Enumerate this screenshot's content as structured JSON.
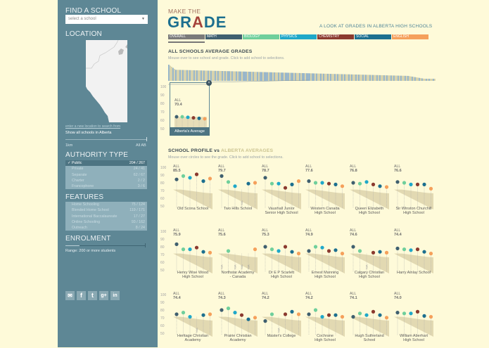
{
  "sidebar": {
    "find_heading": "FIND A SCHOOL",
    "select_placeholder": "select a school",
    "location_heading": "LOCATION",
    "location_link": "enter a new location to search from",
    "show_all": "Show all schools in Alberta",
    "distance_min": "1km",
    "distance_max": "All AB",
    "authority_heading": "AUTHORITY TYPE",
    "authority_items": [
      {
        "label": "Public",
        "count": "204 / 267",
        "selected": true,
        "check": "✓"
      },
      {
        "label": "Private",
        "count": "24 / 41",
        "selected": false
      },
      {
        "label": "Separate",
        "count": "62 / 67",
        "selected": false
      },
      {
        "label": "Charter",
        "count": "2 / 2",
        "selected": false
      },
      {
        "label": "Francophone",
        "count": "3 / 6",
        "selected": false
      }
    ],
    "features_heading": "FEATURES",
    "features_items": [
      {
        "label": "Home Schooling",
        "count": "75 / 124"
      },
      {
        "label": "Blended Home School",
        "count": "119 / 171"
      },
      {
        "label": "International Baccalaureate",
        "count": "17 / 27"
      },
      {
        "label": "Online Schooling",
        "count": "93 / 162"
      },
      {
        "label": "Outreach",
        "count": "8 / 24"
      }
    ],
    "enrolment_heading": "ENROLMENT",
    "enrolment_range": "Range: 200 or more students",
    "social_icons": [
      "email-icon",
      "facebook-icon",
      "twitter-icon",
      "google-plus-icon",
      "linkedin-icon"
    ],
    "social_glyphs": [
      "✉",
      "f",
      "t",
      "g+",
      "in"
    ]
  },
  "header": {
    "make_the": "MAKE THE",
    "grade_pre": "GR",
    "grade_a": "A",
    "grade_post": "DE",
    "tagline": "A LOOK AT GRADES IN ALBERTA HIGH SCHOOLS"
  },
  "tabs": [
    {
      "label": "OVERALL",
      "color": "#7a7a7a",
      "active": true
    },
    {
      "label": "MATH",
      "color": "#3f5f6f"
    },
    {
      "label": "BIOLOGY",
      "color": "#6fcf9b"
    },
    {
      "label": "PHYSICS",
      "color": "#1fa8c9"
    },
    {
      "label": "CHEMISTRY",
      "color": "#8b3a2f"
    },
    {
      "label": "SOCIAL",
      "color": "#1c6f8f"
    },
    {
      "label": "ENGLISH",
      "color": "#f5a05b"
    }
  ],
  "all_schools": {
    "title": "ALL SCHOOLS AVERAGE GRADES",
    "subtitle": "Mouse over to see school and grade. Click to add school to selections.",
    "close_icon": "×",
    "average_label": "Alberta's Average",
    "average_all": "ALL",
    "average_value": "70.4"
  },
  "profile": {
    "title_pre": "SCHOOL PROFILE vs ",
    "title_alb": "ALBERTA AVERAGES",
    "subtitle": "Mouse over circles to see the grade. Click to add school to selections.",
    "all_label": "ALL",
    "na_label": "N/A"
  },
  "chart_data": {
    "type": "scatter",
    "title": "School Profile vs Alberta Averages",
    "ylim": [
      50,
      100
    ],
    "yticks": [
      50,
      60,
      70,
      80,
      90,
      100
    ],
    "subjects": [
      "Math",
      "Biology",
      "Physics",
      "Chemistry",
      "Social",
      "English"
    ],
    "subject_colors": [
      "#3f5f6f",
      "#6fcf9b",
      "#1fa8c9",
      "#8b3a2f",
      "#1c6f8f",
      "#f5a05b"
    ],
    "alberta_average": {
      "all": 70.4,
      "values": [
        72,
        72,
        71,
        70,
        69,
        68
      ]
    },
    "schools": [
      {
        "name": "Old Scona School",
        "all": 85.5,
        "values": [
          84,
          88,
          86,
          90,
          82,
          85
        ]
      },
      {
        "name": "Two Hills School",
        "all": 79.7,
        "values": [
          88,
          81,
          76,
          null,
          79,
          80
        ]
      },
      {
        "name": "Vauxhall Junior Senior High School",
        "all": 78.7,
        "values": [
          86,
          79,
          79,
          74,
          78,
          82
        ]
      },
      {
        "name": "Western Canada High School",
        "all": 77.6,
        "values": [
          82,
          80,
          80,
          79,
          78,
          76
        ]
      },
      {
        "name": "Queen Elizabeth High School",
        "all": 76.8,
        "values": [
          80,
          79,
          81,
          78,
          76,
          75
        ]
      },
      {
        "name": "Sir Winston Churchill High School",
        "all": 76.6,
        "values": [
          81,
          80,
          78,
          78,
          78,
          73
        ]
      },
      {
        "name": "Henry Wise Wood High School",
        "all": 75.9,
        "values": [
          83,
          77,
          77,
          79,
          74,
          73
        ]
      },
      {
        "name": "Northstar Academy - Canada",
        "all": 75.6,
        "values": [
          null,
          75,
          null,
          null,
          null,
          77
        ]
      },
      {
        "name": "Dr E P Scarlett High School",
        "all": 75.3,
        "values": [
          80,
          77,
          75,
          80,
          74,
          72
        ]
      },
      {
        "name": "Ernest Manning High School",
        "all": 74.9,
        "values": [
          75,
          80,
          79,
          75,
          76,
          72
        ]
      },
      {
        "name": "Calgary Christian High School",
        "all": 74.6,
        "values": [
          80,
          75,
          null,
          73,
          74,
          73
        ]
      },
      {
        "name": "Harry Ainlay School",
        "all": 74.4,
        "values": [
          78,
          77,
          76,
          77,
          74,
          72
        ]
      },
      {
        "name": "Heritage Christian Academy",
        "all": 74.4,
        "values": [
          75,
          77,
          72,
          null,
          74,
          75
        ]
      },
      {
        "name": "Prairie Christian Academy",
        "all": 74.3,
        "values": [
          80,
          82,
          77,
          74,
          69,
          71
        ]
      },
      {
        "name": "Master's College",
        "all": 74.2,
        "values": [
          67,
          75,
          null,
          75,
          78,
          75
        ]
      },
      {
        "name": "Cochrane High School",
        "all": 74.2,
        "values": [
          75,
          80,
          72,
          74,
          74,
          72
        ]
      },
      {
        "name": "Hugh Sutherland School",
        "all": 74.1,
        "values": [
          72,
          76,
          74,
          78,
          74,
          71
        ]
      },
      {
        "name": "William Aberhart High School",
        "all": 74.0,
        "values": [
          77,
          76,
          76,
          78,
          73,
          72
        ]
      }
    ]
  },
  "schools_display": [
    {
      "l1": "Old Scona School",
      "l2": "",
      "all": "85.5"
    },
    {
      "l1": "Two Hills School",
      "l2": "",
      "all": "79.7"
    },
    {
      "l1": "Vauxhall Junior",
      "l2": "Senior High School",
      "all": "78.7"
    },
    {
      "l1": "Western Canada",
      "l2": "High School",
      "all": "77.6"
    },
    {
      "l1": "Queen Elizabeth",
      "l2": "High School",
      "all": "76.8"
    },
    {
      "l1": "Sir Winston Churchill",
      "l2": "High School",
      "all": "76.6"
    },
    {
      "l1": "Henry Wise Wood",
      "l2": "High School",
      "all": "75.9"
    },
    {
      "l1": "Northstar Academy",
      "l2": "- Canada",
      "all": "75.6"
    },
    {
      "l1": "Dr E P Scarlett",
      "l2": "High School",
      "all": "75.3"
    },
    {
      "l1": "Ernest Manning",
      "l2": "High School",
      "all": "74.9"
    },
    {
      "l1": "Calgary Christian",
      "l2": "High School",
      "all": "74.6"
    },
    {
      "l1": "Harry Ainlay School",
      "l2": "",
      "all": "74.4"
    },
    {
      "l1": "Heritage Christian",
      "l2": "Academy",
      "all": "74.4"
    },
    {
      "l1": "Prairie Christian",
      "l2": "Academy",
      "all": "74.3"
    },
    {
      "l1": "Master's College",
      "l2": "",
      "all": "74.2"
    },
    {
      "l1": "Cochrane",
      "l2": "High School",
      "all": "74.2"
    },
    {
      "l1": "Hugh Sutherland",
      "l2": "School",
      "all": "74.1"
    },
    {
      "l1": "William Aberhart",
      "l2": "High School",
      "all": "74.0"
    }
  ]
}
